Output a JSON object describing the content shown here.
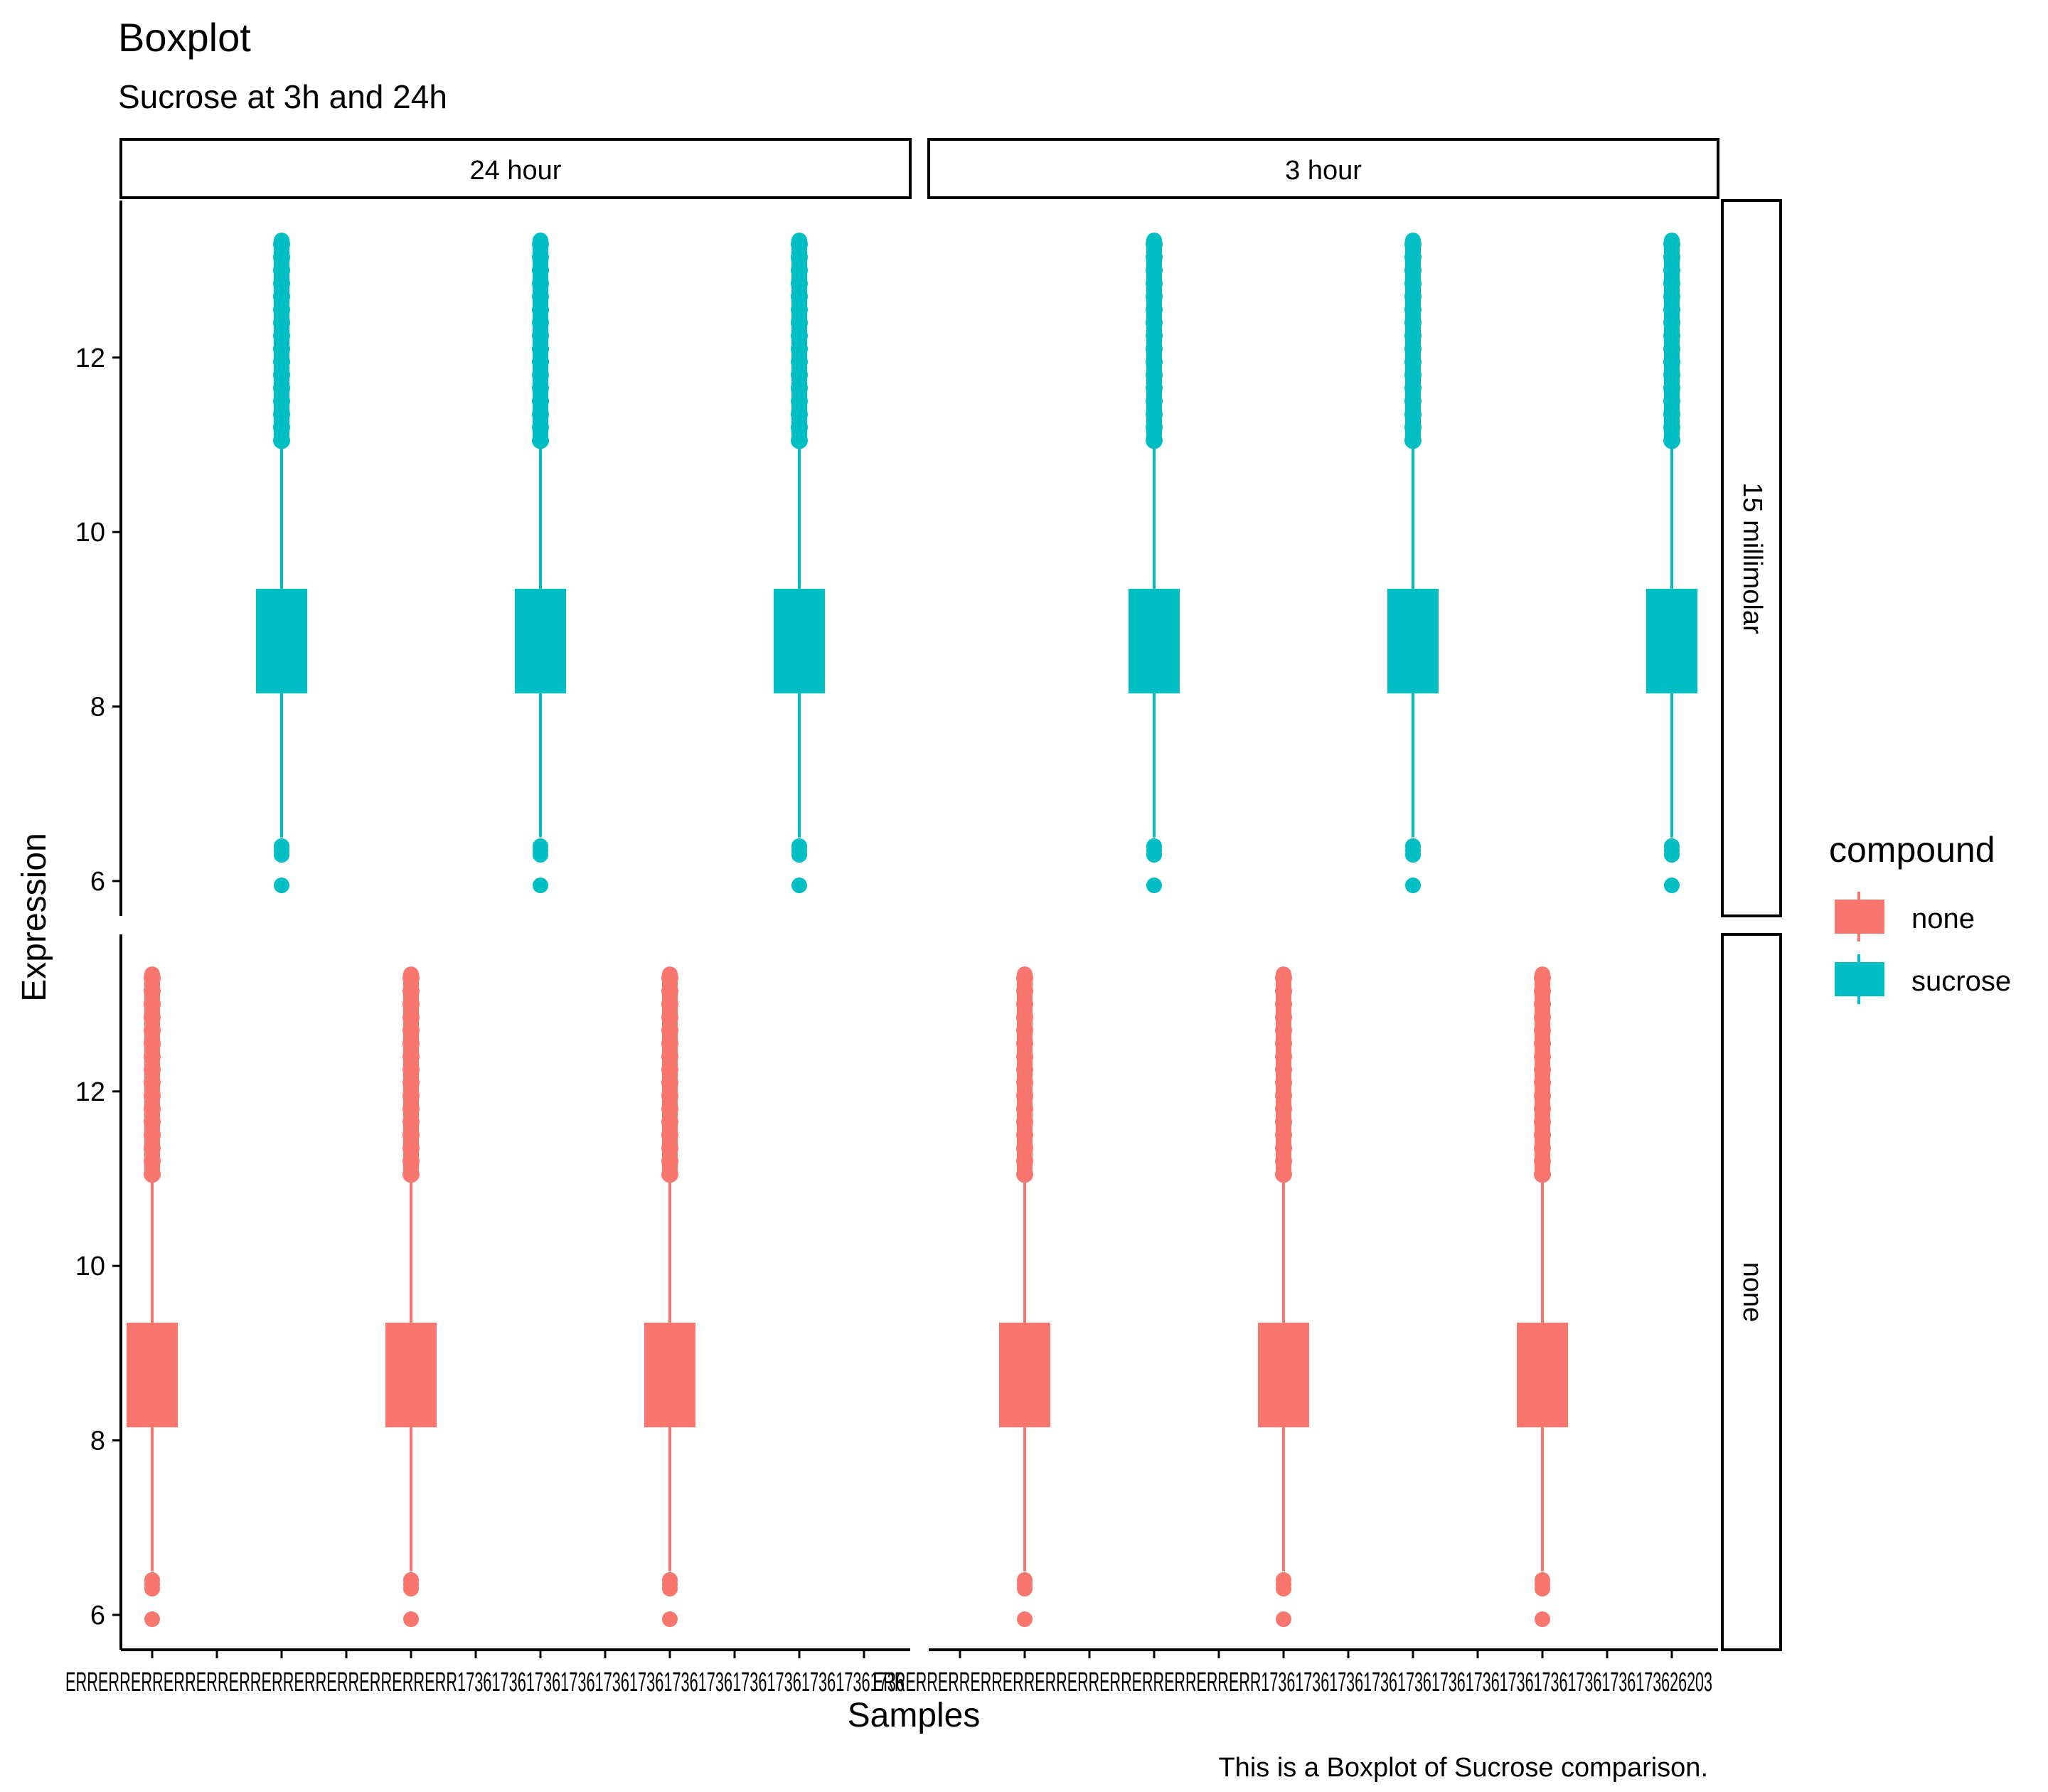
{
  "chart_data": {
    "type": "boxplot",
    "title": "Boxplot",
    "subtitle": "Sucrose at 3h and 24h",
    "caption": "This is a Boxplot of Sucrose comparison.",
    "xlabel": "Samples",
    "ylabel": "Expression",
    "ylim": [
      5.6,
      13.8
    ],
    "yticks": [
      6,
      8,
      10,
      12
    ],
    "grid": false,
    "legend": {
      "title": "compound",
      "position": "right",
      "entries": [
        {
          "name": "none",
          "color": "#F8766D"
        },
        {
          "name": "sucrose",
          "color": "#00BFC4"
        }
      ]
    },
    "facets": {
      "columns": [
        "24 hour",
        "3 hour"
      ],
      "rows": [
        "15 millimolar",
        "none"
      ]
    },
    "x_tick_labels": {
      "24 hour": "ERRERRERRERRERRERRERRERRERRERRERRERR1736173617361736173617361736173617361736173617361736",
      "3 hour": "ERRERRERRERRERRERRERRERRERRERRERRERR17361736173617361736173617361736173617361736173626203"
    },
    "box_stats": {
      "whisker_low": 6.5,
      "q1": 8.15,
      "median": 8.7,
      "q3": 9.35,
      "whisker_high": 11.05
    },
    "outliers_low": [
      6.4,
      6.35,
      6.3,
      5.95
    ],
    "outliers_high_range": [
      11.05,
      13.4
    ],
    "panels": [
      {
        "column": "24 hour",
        "row": "15 millimolar",
        "compound": "sucrose",
        "slots": [
          3,
          7,
          11
        ]
      },
      {
        "column": "3 hour",
        "row": "15 millimolar",
        "compound": "sucrose",
        "slots": [
          4,
          8,
          12
        ]
      },
      {
        "column": "24 hour",
        "row": "none",
        "compound": "none",
        "slots": [
          1,
          5,
          9
        ]
      },
      {
        "column": "3 hour",
        "row": "none",
        "compound": "none",
        "slots": [
          2,
          6,
          10
        ]
      }
    ]
  }
}
